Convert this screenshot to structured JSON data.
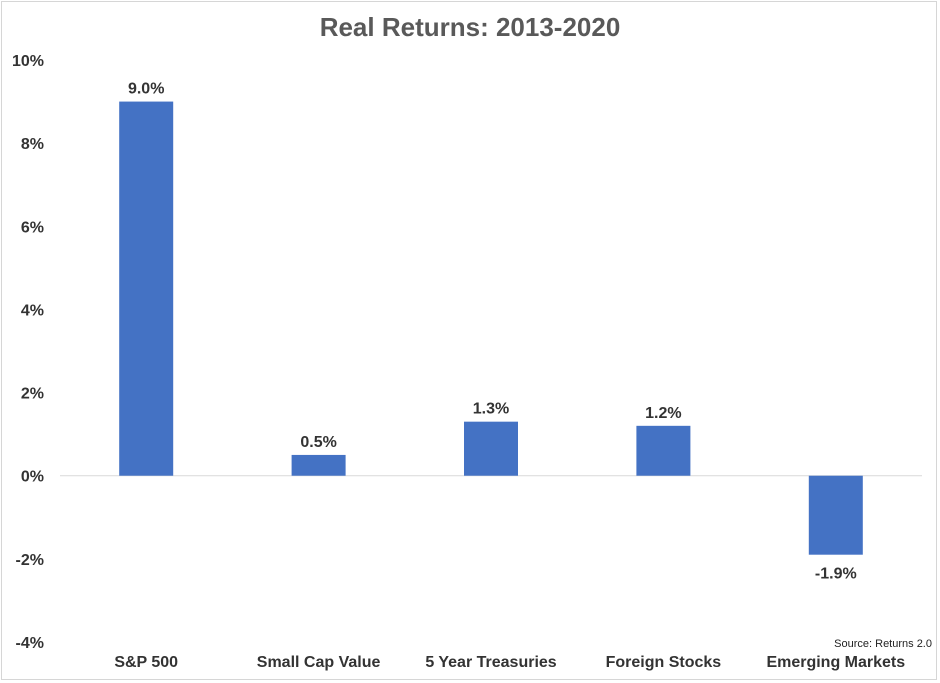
{
  "chart_data": {
    "type": "bar",
    "title": "Real Returns: 2013-2020",
    "categories": [
      "S&P 500",
      "Small Cap Value",
      "5 Year Treasuries",
      "Foreign Stocks",
      "Emerging Markets"
    ],
    "values": [
      9.0,
      0.5,
      1.3,
      1.2,
      -1.9
    ],
    "data_labels": [
      "9.0%",
      "0.5%",
      "1.3%",
      "1.2%",
      "-1.9%"
    ],
    "ylim": [
      -4,
      10
    ],
    "yticks": [
      10,
      8,
      6,
      4,
      2,
      0,
      -2,
      -4
    ],
    "ytick_labels": [
      "10%",
      "8%",
      "6%",
      "4%",
      "2%",
      "0%",
      "-2%",
      "-4%"
    ],
    "xlabel": "",
    "ylabel": "",
    "grid": false,
    "legend": "none",
    "bar_color": "#4472c4",
    "source": "Source: Returns 2.0"
  }
}
